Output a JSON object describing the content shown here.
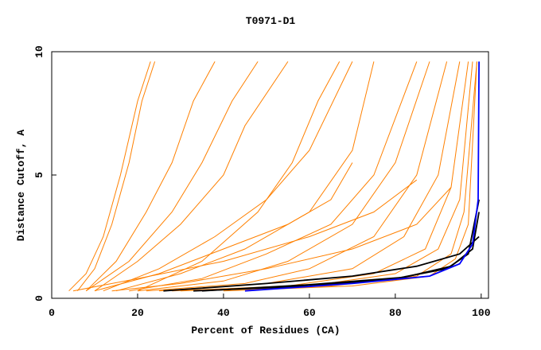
{
  "chart_data": {
    "type": "line",
    "title": "T0971-D1",
    "x_label": "Percent of Residues (CA)",
    "y_label": "Distance Cutoff, A",
    "xlim": [
      0,
      101.7
    ],
    "ylim": [
      0,
      10
    ],
    "xticks": [
      0,
      20,
      40,
      60,
      80,
      100
    ],
    "yticks": [
      0,
      5,
      10
    ],
    "series": [
      {
        "color": "#ff8000",
        "x": [
          4,
          8,
          12,
          16,
          20,
          23
        ],
        "values": [
          0.3,
          1,
          2.5,
          5,
          8,
          9.6
        ]
      },
      {
        "color": "#ff8000",
        "x": [
          6,
          10,
          14,
          18,
          21,
          24
        ],
        "values": [
          0.3,
          1.2,
          3,
          5.5,
          8,
          9.6
        ]
      },
      {
        "color": "#ff8000",
        "x": [
          8,
          15,
          22,
          28,
          33,
          38
        ],
        "values": [
          0.3,
          1.5,
          3.5,
          5.5,
          8,
          9.6
        ]
      },
      {
        "color": "#ff8000",
        "x": [
          10,
          20,
          30,
          40,
          45,
          55
        ],
        "values": [
          0.3,
          1.5,
          3,
          5,
          7,
          9.6
        ]
      },
      {
        "color": "#ff8000",
        "x": [
          12,
          25,
          38,
          50,
          60,
          70
        ],
        "values": [
          0.3,
          1.2,
          2.5,
          4,
          6,
          9.6
        ]
      },
      {
        "color": "#ff8000",
        "x": [
          15,
          30,
          45,
          60,
          70,
          75
        ],
        "values": [
          0.3,
          1,
          2,
          3.5,
          6,
          9.6
        ]
      },
      {
        "color": "#ff8000",
        "x": [
          18,
          35,
          50,
          65,
          75,
          85
        ],
        "values": [
          0.3,
          0.8,
          1.8,
          3,
          5,
          9.6
        ]
      },
      {
        "color": "#ff8000",
        "x": [
          20,
          40,
          55,
          70,
          80,
          88
        ],
        "values": [
          0.3,
          0.7,
          1.5,
          3,
          5.5,
          9.6
        ]
      },
      {
        "color": "#ff8000",
        "x": [
          22,
          45,
          60,
          75,
          85,
          92
        ],
        "values": [
          0.3,
          0.6,
          1.2,
          2.5,
          5,
          9.6
        ]
      },
      {
        "color": "#ff8000",
        "x": [
          25,
          50,
          70,
          82,
          90,
          95
        ],
        "values": [
          0.3,
          0.6,
          1.2,
          2.5,
          5,
          9.6
        ]
      },
      {
        "color": "#ff8000",
        "x": [
          28,
          55,
          75,
          87,
          93,
          97
        ],
        "values": [
          0.3,
          0.5,
          1,
          2,
          4.5,
          9.6
        ]
      },
      {
        "color": "#ff8000",
        "x": [
          30,
          60,
          80,
          90,
          95,
          98
        ],
        "values": [
          0.3,
          0.5,
          1,
          2,
          4,
          9.6
        ]
      },
      {
        "color": "#ff8000",
        "x": [
          35,
          65,
          85,
          93,
          96,
          99
        ],
        "values": [
          0.3,
          0.5,
          0.9,
          1.8,
          3.5,
          9.6
        ]
      },
      {
        "color": "#ff8000",
        "x": [
          10,
          25,
          40,
          55,
          65,
          70
        ],
        "values": [
          0.3,
          1,
          2,
          3,
          4,
          5.5
        ]
      },
      {
        "color": "#ff8000",
        "x": [
          5,
          20,
          40,
          60,
          75,
          85
        ],
        "values": [
          0.3,
          0.8,
          1.5,
          2.5,
          3.5,
          4.8
        ]
      },
      {
        "color": "#ff8000",
        "x": [
          14,
          30,
          50,
          70,
          85,
          93
        ],
        "values": [
          0.3,
          0.6,
          1.2,
          2,
          3,
          4.5
        ]
      },
      {
        "color": "#ff8000",
        "x": [
          40,
          70,
          88,
          94,
          97,
          99
        ],
        "values": [
          0.3,
          0.5,
          0.9,
          1.6,
          3,
          9.6
        ]
      },
      {
        "color": "#ff8000",
        "x": [
          8,
          18,
          28,
          35,
          42,
          48
        ],
        "values": [
          0.3,
          1.5,
          3.5,
          5.5,
          8,
          9.6
        ]
      },
      {
        "color": "#ff8000",
        "x": [
          20,
          35,
          48,
          56,
          62,
          67
        ],
        "values": [
          0.3,
          1.5,
          3.5,
          5.5,
          8,
          9.6
        ]
      },
      {
        "color": "#000000",
        "x": [
          26,
          50,
          70,
          85,
          95,
          99.5
        ],
        "values": [
          0.3,
          0.6,
          0.9,
          1.3,
          1.8,
          2.5
        ]
      },
      {
        "color": "#000000",
        "x": [
          33,
          60,
          80,
          92,
          97,
          99.5
        ],
        "values": [
          0.3,
          0.5,
          0.8,
          1.2,
          1.8,
          4
        ]
      },
      {
        "color": "#000000",
        "x": [
          35,
          60,
          82,
          93,
          98,
          99.5
        ],
        "values": [
          0.3,
          0.55,
          0.85,
          1.3,
          2,
          3.5
        ]
      },
      {
        "color": "#0000ff",
        "x": [
          45,
          70,
          88,
          95,
          98,
          99.3,
          99.5
        ],
        "values": [
          0.3,
          0.6,
          0.9,
          1.4,
          2.2,
          4,
          9.6
        ]
      }
    ]
  }
}
